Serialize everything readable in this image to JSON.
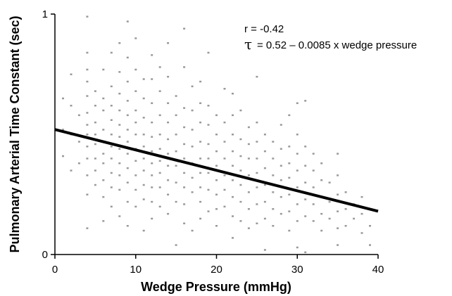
{
  "chart_data": {
    "type": "scatter",
    "xlabel": "Wedge Pressure (mmHg)",
    "ylabel": "Pulmonary Arterial Time Constant (sec)",
    "xlim": [
      0,
      40
    ],
    "ylim": [
      0,
      1
    ],
    "xticks": [
      "0",
      "10",
      "20",
      "30",
      "40"
    ],
    "yticks": [
      "0",
      "1"
    ],
    "grid": false,
    "annotations": {
      "r": "r = -0.42",
      "tau_symbol": "τ",
      "equation": "= 0.52 – 0.0085 x wedge pressure"
    },
    "regression": {
      "intercept": 0.52,
      "slope": -0.0085
    },
    "point_color": "#9a9a9a",
    "line_color": "#000000",
    "points": [
      [
        1,
        0.65
      ],
      [
        1,
        0.52
      ],
      [
        1,
        0.41
      ],
      [
        2,
        0.75
      ],
      [
        2,
        0.62
      ],
      [
        2,
        0.5
      ],
      [
        2,
        0.35
      ],
      [
        3,
        0.58
      ],
      [
        3,
        0.47
      ],
      [
        3,
        0.38
      ],
      [
        4,
        0.99
      ],
      [
        4,
        0.84
      ],
      [
        4,
        0.77
      ],
      [
        4,
        0.72
      ],
      [
        4,
        0.66
      ],
      [
        4,
        0.59
      ],
      [
        4,
        0.54
      ],
      [
        4,
        0.5
      ],
      [
        4,
        0.45
      ],
      [
        4,
        0.4
      ],
      [
        4,
        0.33
      ],
      [
        4,
        0.25
      ],
      [
        4,
        0.11
      ],
      [
        5,
        0.68
      ],
      [
        5,
        0.62
      ],
      [
        5,
        0.55
      ],
      [
        5,
        0.5
      ],
      [
        5,
        0.46
      ],
      [
        5,
        0.4
      ],
      [
        5,
        0.35
      ],
      [
        5,
        0.29
      ],
      [
        6,
        0.77
      ],
      [
        6,
        0.65
      ],
      [
        6,
        0.6
      ],
      [
        6,
        0.52
      ],
      [
        6,
        0.47
      ],
      [
        6,
        0.42
      ],
      [
        6,
        0.38
      ],
      [
        6,
        0.31
      ],
      [
        6,
        0.24
      ],
      [
        6,
        0.14
      ],
      [
        7,
        0.84
      ],
      [
        7,
        0.7
      ],
      [
        7,
        0.62
      ],
      [
        7,
        0.56
      ],
      [
        7,
        0.5
      ],
      [
        7,
        0.45
      ],
      [
        7,
        0.4
      ],
      [
        7,
        0.34
      ],
      [
        7,
        0.28
      ],
      [
        7,
        0.2
      ],
      [
        8,
        0.88
      ],
      [
        8,
        0.76
      ],
      [
        8,
        0.67
      ],
      [
        8,
        0.6
      ],
      [
        8,
        0.54
      ],
      [
        8,
        0.49
      ],
      [
        8,
        0.44
      ],
      [
        8,
        0.38
      ],
      [
        8,
        0.33
      ],
      [
        8,
        0.27
      ],
      [
        8,
        0.16
      ],
      [
        9,
        0.97
      ],
      [
        9,
        0.82
      ],
      [
        9,
        0.72
      ],
      [
        9,
        0.64
      ],
      [
        9,
        0.58
      ],
      [
        9,
        0.52
      ],
      [
        9,
        0.47
      ],
      [
        9,
        0.42
      ],
      [
        9,
        0.36
      ],
      [
        9,
        0.3
      ],
      [
        9,
        0.22
      ],
      [
        9,
        0.12
      ],
      [
        10,
        0.9
      ],
      [
        10,
        0.77
      ],
      [
        10,
        0.68
      ],
      [
        10,
        0.6
      ],
      [
        10,
        0.55
      ],
      [
        10,
        0.5
      ],
      [
        10,
        0.44
      ],
      [
        10,
        0.39
      ],
      [
        10,
        0.33
      ],
      [
        10,
        0.27
      ],
      [
        10,
        0.2
      ],
      [
        11,
        0.73
      ],
      [
        11,
        0.65
      ],
      [
        11,
        0.57
      ],
      [
        11,
        0.5
      ],
      [
        11,
        0.45
      ],
      [
        11,
        0.4
      ],
      [
        11,
        0.35
      ],
      [
        11,
        0.29
      ],
      [
        11,
        0.23
      ],
      [
        11,
        0.1
      ],
      [
        12,
        0.83
      ],
      [
        12,
        0.73
      ],
      [
        12,
        0.63
      ],
      [
        12,
        0.55
      ],
      [
        12,
        0.49
      ],
      [
        12,
        0.43
      ],
      [
        12,
        0.38
      ],
      [
        12,
        0.33
      ],
      [
        12,
        0.28
      ],
      [
        12,
        0.22
      ],
      [
        12,
        0.15
      ],
      [
        13,
        0.78
      ],
      [
        13,
        0.68
      ],
      [
        13,
        0.58
      ],
      [
        13,
        0.5
      ],
      [
        13,
        0.44
      ],
      [
        13,
        0.39
      ],
      [
        13,
        0.34
      ],
      [
        13,
        0.28
      ],
      [
        13,
        0.2
      ],
      [
        14,
        0.88
      ],
      [
        14,
        0.74
      ],
      [
        14,
        0.63
      ],
      [
        14,
        0.55
      ],
      [
        14,
        0.48
      ],
      [
        14,
        0.42
      ],
      [
        14,
        0.37
      ],
      [
        14,
        0.31
      ],
      [
        14,
        0.25
      ],
      [
        14,
        0.17
      ],
      [
        15,
        0.66
      ],
      [
        15,
        0.58
      ],
      [
        15,
        0.5
      ],
      [
        15,
        0.43
      ],
      [
        15,
        0.37
      ],
      [
        15,
        0.3
      ],
      [
        15,
        0.22
      ],
      [
        15,
        0.04
      ],
      [
        16,
        0.94
      ],
      [
        16,
        0.78
      ],
      [
        16,
        0.61
      ],
      [
        16,
        0.53
      ],
      [
        16,
        0.46
      ],
      [
        16,
        0.4
      ],
      [
        16,
        0.34
      ],
      [
        16,
        0.28
      ],
      [
        16,
        0.21
      ],
      [
        16,
        0.13
      ],
      [
        17,
        0.7
      ],
      [
        17,
        0.6
      ],
      [
        17,
        0.52
      ],
      [
        17,
        0.45
      ],
      [
        17,
        0.38
      ],
      [
        17,
        0.32
      ],
      [
        17,
        0.26
      ],
      [
        17,
        0.1
      ],
      [
        18,
        0.72
      ],
      [
        18,
        0.63
      ],
      [
        18,
        0.55
      ],
      [
        18,
        0.47
      ],
      [
        18,
        0.4
      ],
      [
        18,
        0.34
      ],
      [
        18,
        0.28
      ],
      [
        18,
        0.22
      ],
      [
        18,
        0.15
      ],
      [
        19,
        0.84
      ],
      [
        19,
        0.62
      ],
      [
        19,
        0.54
      ],
      [
        19,
        0.46
      ],
      [
        19,
        0.4
      ],
      [
        19,
        0.34
      ],
      [
        19,
        0.27
      ],
      [
        19,
        0.18
      ],
      [
        20,
        0.58
      ],
      [
        20,
        0.5
      ],
      [
        20,
        0.43
      ],
      [
        20,
        0.37
      ],
      [
        20,
        0.31
      ],
      [
        20,
        0.25
      ],
      [
        20,
        0.19
      ],
      [
        20,
        0.12
      ],
      [
        21,
        0.69
      ],
      [
        21,
        0.55
      ],
      [
        21,
        0.47
      ],
      [
        21,
        0.4
      ],
      [
        21,
        0.33
      ],
      [
        21,
        0.27
      ],
      [
        21,
        0.2
      ],
      [
        22,
        0.67
      ],
      [
        22,
        0.58
      ],
      [
        22,
        0.5
      ],
      [
        22,
        0.43
      ],
      [
        22,
        0.37
      ],
      [
        22,
        0.31
      ],
      [
        22,
        0.24
      ],
      [
        22,
        0.16
      ],
      [
        22,
        0.07
      ],
      [
        23,
        0.6
      ],
      [
        23,
        0.48
      ],
      [
        23,
        0.41
      ],
      [
        23,
        0.35
      ],
      [
        23,
        0.29
      ],
      [
        23,
        0.22
      ],
      [
        23,
        0.14
      ],
      [
        24,
        0.53
      ],
      [
        24,
        0.46
      ],
      [
        24,
        0.4
      ],
      [
        24,
        0.33
      ],
      [
        24,
        0.26
      ],
      [
        24,
        0.19
      ],
      [
        24,
        0.11
      ],
      [
        25,
        0.74
      ],
      [
        25,
        0.55
      ],
      [
        25,
        0.47
      ],
      [
        25,
        0.4
      ],
      [
        25,
        0.34
      ],
      [
        25,
        0.28
      ],
      [
        25,
        0.21
      ],
      [
        25,
        0.13
      ],
      [
        26,
        0.5
      ],
      [
        26,
        0.43
      ],
      [
        26,
        0.36
      ],
      [
        26,
        0.29
      ],
      [
        26,
        0.22
      ],
      [
        26,
        0.15
      ],
      [
        26,
        0.02
      ],
      [
        27,
        0.47
      ],
      [
        27,
        0.4
      ],
      [
        27,
        0.33
      ],
      [
        27,
        0.26
      ],
      [
        27,
        0.19
      ],
      [
        27,
        0.12
      ],
      [
        28,
        0.54
      ],
      [
        28,
        0.44
      ],
      [
        28,
        0.37
      ],
      [
        28,
        0.31
      ],
      [
        28,
        0.24
      ],
      [
        28,
        0.17
      ],
      [
        29,
        0.58
      ],
      [
        29,
        0.45
      ],
      [
        29,
        0.38
      ],
      [
        29,
        0.32
      ],
      [
        29,
        0.25
      ],
      [
        29,
        0.18
      ],
      [
        29,
        0.1
      ],
      [
        30,
        0.63
      ],
      [
        30,
        0.5
      ],
      [
        30,
        0.42
      ],
      [
        30,
        0.35
      ],
      [
        30,
        0.28
      ],
      [
        30,
        0.21
      ],
      [
        30,
        0.14
      ],
      [
        30,
        0.03
      ],
      [
        31,
        0.64
      ],
      [
        31,
        0.45
      ],
      [
        31,
        0.37
      ],
      [
        31,
        0.3
      ],
      [
        31,
        0.23
      ],
      [
        31,
        0.16
      ],
      [
        31,
        0.01
      ],
      [
        32,
        0.42
      ],
      [
        32,
        0.35
      ],
      [
        32,
        0.28
      ],
      [
        32,
        0.21
      ],
      [
        32,
        0.14
      ],
      [
        33,
        0.38
      ],
      [
        33,
        0.31
      ],
      [
        33,
        0.24
      ],
      [
        33,
        0.17
      ],
      [
        33,
        0.1
      ],
      [
        34,
        0.3
      ],
      [
        34,
        0.22
      ],
      [
        34,
        0.15
      ],
      [
        35,
        0.42
      ],
      [
        35,
        0.33
      ],
      [
        35,
        0.25
      ],
      [
        35,
        0.18
      ],
      [
        35,
        0.11
      ],
      [
        35,
        0.04
      ],
      [
        36,
        0.26
      ],
      [
        36,
        0.19
      ],
      [
        36,
        0.12
      ],
      [
        37,
        0.21
      ],
      [
        37,
        0.15
      ],
      [
        38,
        0.24
      ],
      [
        38,
        0.17
      ],
      [
        38,
        0.09
      ],
      [
        39,
        0.19
      ],
      [
        39,
        0.12
      ],
      [
        39,
        0.04
      ]
    ]
  }
}
